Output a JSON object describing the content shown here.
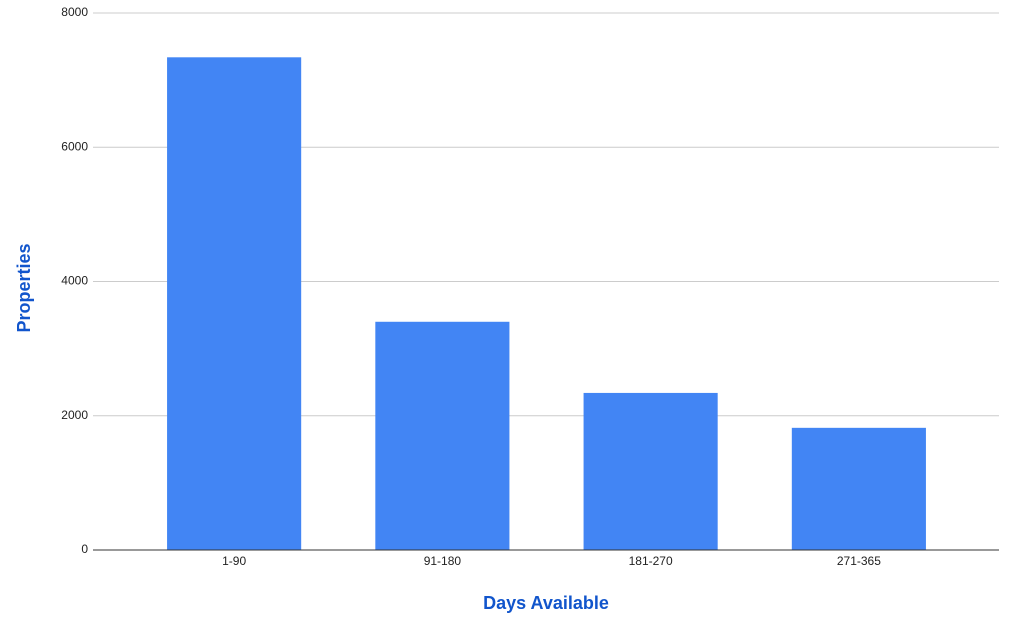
{
  "chart_data": {
    "type": "bar",
    "x_label": "Days Available",
    "y_label": "Properties",
    "categories": [
      "1-90",
      "91-180",
      "181-270",
      "271-365"
    ],
    "values": [
      7340,
      3400,
      2340,
      1820
    ],
    "color": "#4285f4",
    "ylim": [
      0,
      8000
    ],
    "yticks": [
      0,
      2000,
      4000,
      6000,
      8000
    ],
    "grid": true
  }
}
